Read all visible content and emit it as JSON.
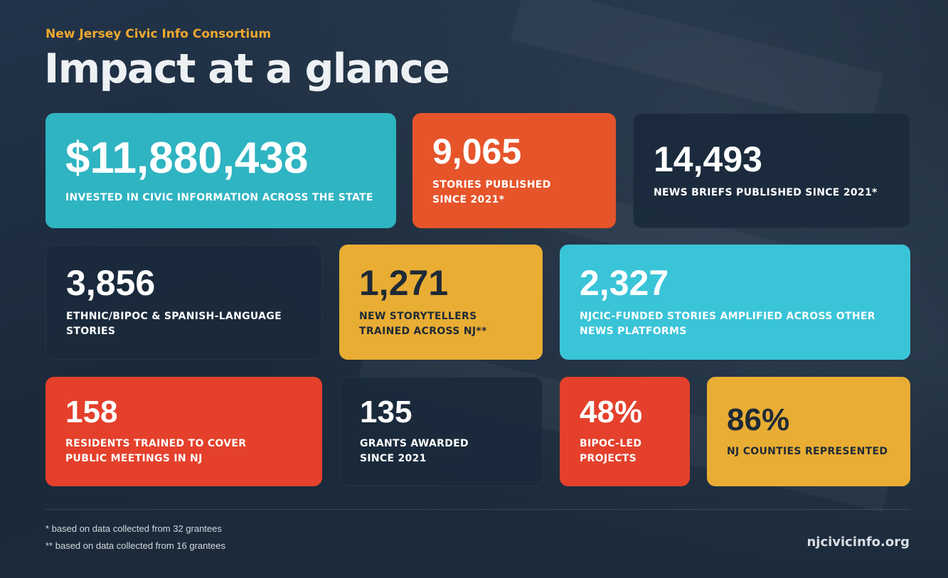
{
  "header": {
    "organization": "New Jersey Civic Info Consortium",
    "title": "Impact at a glance"
  },
  "stats": [
    {
      "id": "invested",
      "value": "$11,880,438",
      "label": "INVESTED IN CIVIC INFORMATION ACROSS THE STATE",
      "color": "#2fb4c2"
    },
    {
      "id": "stories",
      "value": "9,065",
      "label": "STORIES PUBLISHED SINCE 2021*",
      "color": "#e6542a"
    },
    {
      "id": "briefs",
      "value": "14,493",
      "label": "NEWS BRIEFS PUBLISHED SINCE 2021*",
      "color": "#1a2a3c"
    },
    {
      "id": "ethnic",
      "value": "3,856",
      "label": "ETHNIC/BIPOC & SPANISH-LANGUAGE STORIES",
      "color": "#1a2a3c"
    },
    {
      "id": "storytellers",
      "value": "1,271",
      "label": "NEW STORYTELLERS TRAINED ACROSS NJ**",
      "color": "#e9ad34"
    },
    {
      "id": "amplified",
      "value": "2,327",
      "label": "NJCIC-FUNDED STORIES AMPLIFIED ACROSS OTHER NEWS PLATFORMS",
      "color": "#3ac4d8"
    },
    {
      "id": "residents",
      "value": "158",
      "label": "RESIDENTS TRAINED TO COVER PUBLIC MEETINGS IN NJ",
      "color": "#e4402b"
    },
    {
      "id": "grants",
      "value": "135",
      "label": "GRANTS AWARDED SINCE 2021",
      "color": "#1a2a3c"
    },
    {
      "id": "bipoc",
      "value": "48%",
      "label": "BIPOC-LED PROJECTS",
      "color": "#e4402b"
    },
    {
      "id": "counties",
      "value": "86%",
      "label": "NJ COUNTIES REPRESENTED",
      "color": "#e9ad34"
    }
  ],
  "footer": {
    "note1": "* based on data collected from 32 grantees",
    "note2": "** based on data collected from 16 grantees",
    "website": "njcivicinfo.org"
  }
}
